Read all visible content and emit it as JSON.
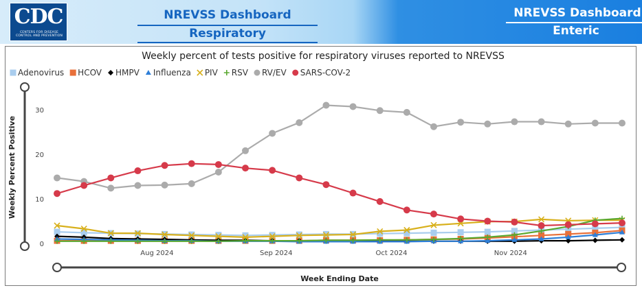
{
  "header": {
    "logo_text": "CDC",
    "logo_subtext": "CENTERS FOR DISEASE CONTROL AND PREVENTION",
    "tab_left_title": "NREVSS Dashboard",
    "tab_left_subtitle": "Respiratory",
    "tab_right_title": "NREVSS Dashboard",
    "tab_right_subtitle": "Enteric"
  },
  "chart_data": {
    "type": "line",
    "title": "Weekly percent of tests positive for respiratory viruses reported to NREVSS",
    "xlabel": "Week Ending Date",
    "ylabel": "Weekly Percent Positive",
    "ylim": [
      0,
      35
    ],
    "yticks": [
      0,
      10,
      20,
      30
    ],
    "x": [
      "2024-07-06",
      "2024-07-13",
      "2024-07-20",
      "2024-07-27",
      "2024-08-03",
      "2024-08-10",
      "2024-08-17",
      "2024-08-24",
      "2024-08-31",
      "2024-09-07",
      "2024-09-14",
      "2024-09-21",
      "2024-09-28",
      "2024-10-05",
      "2024-10-12",
      "2024-10-19",
      "2024-10-26",
      "2024-11-02",
      "2024-11-09",
      "2024-11-16",
      "2024-11-23",
      "2024-11-30"
    ],
    "xtick_labels": [
      {
        "label": "Aug 2024",
        "date": "2024-08-01"
      },
      {
        "label": "Sep 2024",
        "date": "2024-09-01"
      },
      {
        "label": "Oct 2024",
        "date": "2024-10-01"
      },
      {
        "label": "Nov 2024",
        "date": "2024-11-01"
      }
    ],
    "grid": false,
    "legend": "top-left",
    "series": [
      {
        "name": "Adenovirus",
        "color": "#a9cdee",
        "marker": "square",
        "values": [
          2.6,
          2.4,
          2.3,
          2.2,
          2.1,
          2.0,
          1.9,
          1.8,
          1.9,
          2.0,
          2.1,
          2.1,
          2.2,
          2.3,
          2.4,
          2.5,
          2.6,
          2.8,
          3.0,
          3.2,
          3.4,
          3.6
        ]
      },
      {
        "name": "HCOV",
        "color": "#e8703a",
        "marker": "square",
        "values": [
          0.6,
          0.6,
          0.6,
          0.6,
          0.6,
          0.6,
          0.6,
          0.6,
          0.6,
          0.6,
          0.7,
          0.7,
          0.7,
          0.8,
          0.9,
          1.0,
          1.2,
          1.5,
          1.8,
          2.1,
          2.4,
          2.9
        ]
      },
      {
        "name": "HMPV",
        "color": "#000000",
        "marker": "diamond",
        "values": [
          1.6,
          1.4,
          1.1,
          1.0,
          0.9,
          0.8,
          0.7,
          0.7,
          0.6,
          0.6,
          0.5,
          0.5,
          0.5,
          0.5,
          0.5,
          0.5,
          0.5,
          0.5,
          0.6,
          0.6,
          0.7,
          0.8
        ]
      },
      {
        "name": "Influenza",
        "color": "#2e7fd8",
        "marker": "triangle",
        "values": [
          1.0,
          0.9,
          0.8,
          0.7,
          0.6,
          0.6,
          0.5,
          0.5,
          0.5,
          0.4,
          0.4,
          0.4,
          0.4,
          0.4,
          0.5,
          0.5,
          0.6,
          0.8,
          1.0,
          1.4,
          1.9,
          2.5
        ]
      },
      {
        "name": "PIV",
        "color": "#d8b01c",
        "marker": "x",
        "values": [
          4.0,
          3.3,
          2.3,
          2.3,
          2.0,
          1.8,
          1.6,
          1.4,
          1.6,
          1.8,
          1.9,
          2.0,
          2.7,
          3.0,
          4.1,
          4.5,
          4.9,
          4.9,
          5.4,
          5.1,
          5.2,
          5.2
        ]
      },
      {
        "name": "RSV",
        "color": "#5aa830",
        "marker": "plus",
        "values": [
          0.5,
          0.5,
          0.5,
          0.5,
          0.5,
          0.5,
          0.5,
          0.6,
          0.6,
          0.6,
          0.7,
          0.7,
          0.8,
          0.8,
          0.9,
          1.1,
          1.4,
          1.9,
          2.8,
          3.8,
          5.2,
          5.6
        ]
      },
      {
        "name": "RV/EV",
        "color": "#ababab",
        "marker": "circle",
        "values": [
          14.7,
          13.9,
          12.4,
          13.0,
          13.1,
          13.4,
          16.0,
          20.8,
          24.7,
          27.1,
          31.0,
          30.7,
          29.8,
          29.4,
          26.2,
          27.2,
          26.8,
          27.3,
          27.3,
          26.8,
          27.0,
          27.0
        ]
      },
      {
        "name": "SARS-COV-2",
        "color": "#d63a4a",
        "marker": "circle",
        "values": [
          11.2,
          13.0,
          14.7,
          16.3,
          17.5,
          17.9,
          17.7,
          16.9,
          16.4,
          14.7,
          13.2,
          11.3,
          9.4,
          7.5,
          6.6,
          5.5,
          5.0,
          4.8,
          4.0,
          4.2,
          4.4,
          4.6
        ]
      }
    ]
  }
}
